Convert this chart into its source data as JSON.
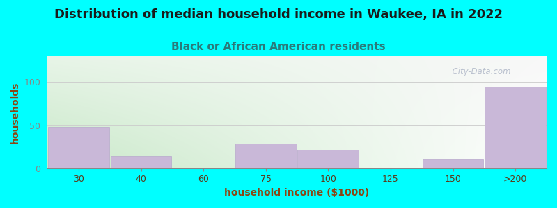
{
  "title": "Distribution of median household income in Waukee, IA in 2022",
  "subtitle": "Black or African American residents",
  "xlabel": "household income ($1000)",
  "ylabel": "households",
  "background_color": "#00FFFF",
  "plot_bg_color_topleft": "#e8f5e8",
  "plot_bg_color_topright": "#f8f8f8",
  "plot_bg_color_bottomleft": "#d0ead0",
  "plot_bg_color_bottomright": "#ffffff",
  "bar_color": "#c9b8d8",
  "bar_edge_color": "#b8a8cc",
  "title_color": "#1a1a1a",
  "subtitle_color": "#2a7a7a",
  "axis_label_color": "#8B4513",
  "tick_label_color": "#5a3a1a",
  "ytick_color": "#888888",
  "grid_color": "#cccccc",
  "categories": [
    "30",
    "40",
    "60",
    "75",
    "100",
    "125",
    "150",
    ">200"
  ],
  "values": [
    48,
    15,
    0,
    29,
    22,
    0,
    11,
    95
  ],
  "yticks": [
    0,
    50,
    100
  ],
  "ylim": [
    0,
    130
  ],
  "title_fontsize": 13,
  "subtitle_fontsize": 11,
  "label_fontsize": 10,
  "tick_fontsize": 9,
  "watermark": "  City-Data.com"
}
